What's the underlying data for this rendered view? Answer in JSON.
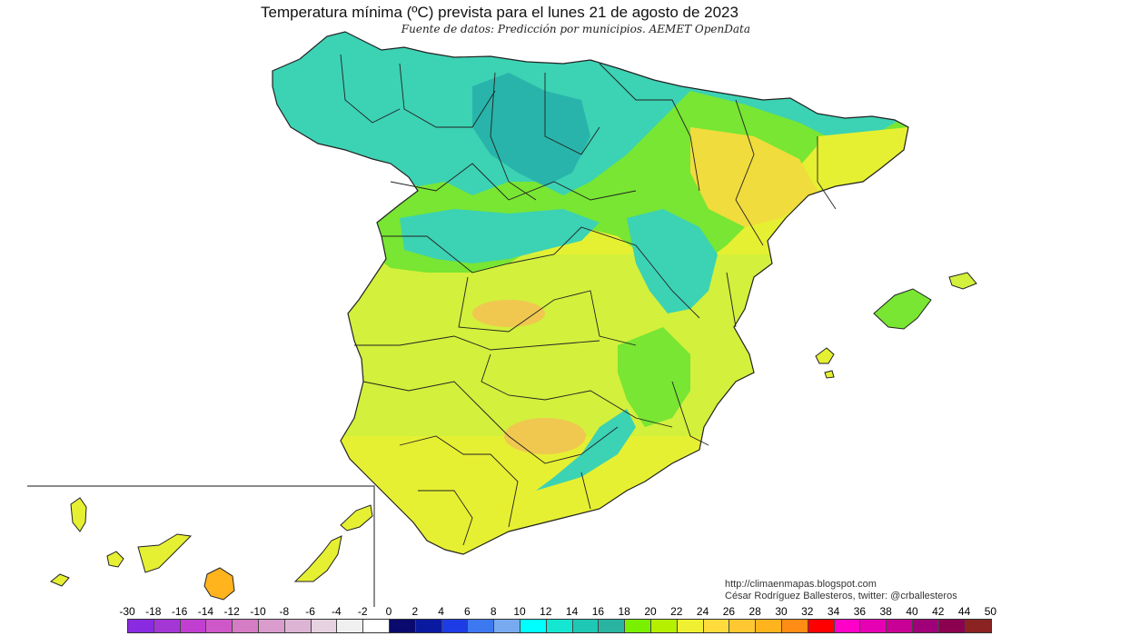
{
  "title": "Temperatura mínima (ºC) prevista para el lunes 21 de agosto de 2023",
  "subtitle": "Fuente de datos: Predicción por municipios. AEMET OpenData",
  "credits": {
    "url": "http://climaenmapas.blogspot.com",
    "author": "César Rodríguez Ballesteros, twitter: @crballesteros"
  },
  "legend": {
    "labels": [
      "-30",
      "-18",
      "-16",
      "-14",
      "-12",
      "-10",
      "-8",
      "-6",
      "-4",
      "-2",
      "0",
      "2",
      "4",
      "6",
      "8",
      "10",
      "12",
      "14",
      "16",
      "18",
      "20",
      "22",
      "24",
      "26",
      "28",
      "30",
      "32",
      "34",
      "36",
      "38",
      "40",
      "42",
      "44",
      "50"
    ],
    "colors": [
      "#8a2be2",
      "#a436d6",
      "#c03fd0",
      "#cf58c8",
      "#d47cc4",
      "#d99ccd",
      "#dcb5d4",
      "#e6d2e0",
      "#f0f0f0",
      "#ffffff",
      "#0a0a6e",
      "#0a1aa0",
      "#1e3ce6",
      "#3c78f0",
      "#78aaf0",
      "#00ffff",
      "#14e6d2",
      "#1ec8b4",
      "#28b4a0",
      "#78f000",
      "#b4f000",
      "#f0f032",
      "#ffdc3c",
      "#ffc832",
      "#ffb41e",
      "#ff8c14",
      "#ff0000",
      "#ff00c8",
      "#e600b4",
      "#c80096",
      "#a00078",
      "#8c0050",
      "#8b2323"
    ]
  },
  "map": {
    "region_colors": {
      "north_cool": "#3cd2b4",
      "north_cold": "#28b4aa",
      "green_band": "#78e632",
      "interior": "#d2f03c",
      "warm_spot": "#f0c850",
      "south": "#e6f032"
    }
  }
}
